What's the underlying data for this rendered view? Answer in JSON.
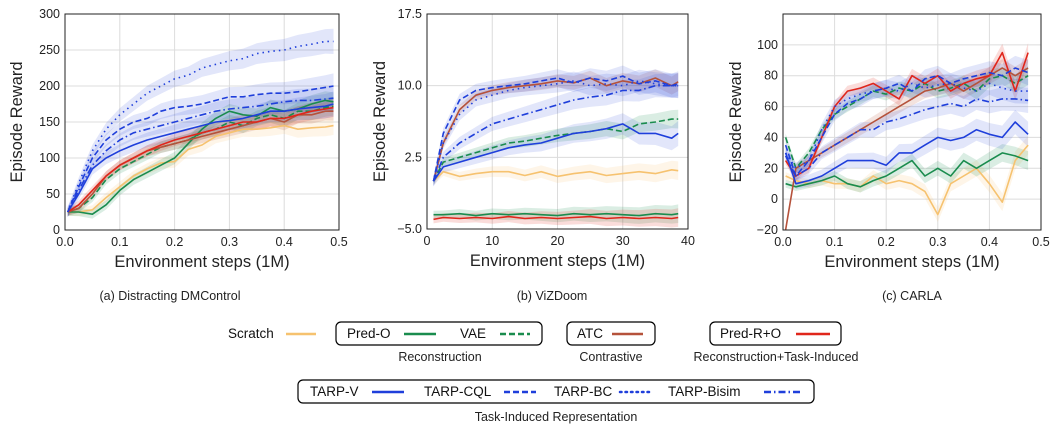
{
  "chart_data": [
    {
      "type": "line",
      "caption": "(a) Distracting DMControl",
      "xlabel": "Environment steps (1M)",
      "ylabel": "Episode Reward",
      "xlim": [
        0,
        0.5
      ],
      "ylim": [
        0,
        300
      ],
      "xticks": [
        "0.0",
        "0.1",
        "0.2",
        "0.3",
        "0.4",
        "0.5"
      ],
      "yticks": [
        "0",
        "50",
        "100",
        "150",
        "200",
        "250",
        "300"
      ],
      "grid": true,
      "x": [
        0.005,
        0.025,
        0.05,
        0.075,
        0.1,
        0.125,
        0.15,
        0.175,
        0.2,
        0.225,
        0.25,
        0.275,
        0.3,
        0.325,
        0.35,
        0.375,
        0.4,
        0.425,
        0.45,
        0.475,
        0.49
      ],
      "series": [
        {
          "key": "scratch",
          "values": [
            25,
            25,
            28,
            45,
            60,
            75,
            85,
            93,
            95,
            112,
            118,
            130,
            135,
            140,
            140,
            142,
            145,
            140,
            142,
            143,
            145
          ]
        },
        {
          "key": "pred_o",
          "values": [
            25,
            25,
            22,
            35,
            55,
            70,
            80,
            90,
            100,
            120,
            140,
            155,
            165,
            160,
            158,
            170,
            165,
            168,
            175,
            180,
            178
          ]
        },
        {
          "key": "vae",
          "values": [
            25,
            30,
            45,
            70,
            85,
            95,
            105,
            115,
            120,
            125,
            135,
            140,
            150,
            145,
            155,
            160,
            155,
            165,
            165,
            170,
            172
          ]
        },
        {
          "key": "atc",
          "values": [
            25,
            30,
            50,
            75,
            90,
            100,
            110,
            115,
            120,
            125,
            130,
            135,
            140,
            145,
            150,
            155,
            150,
            160,
            160,
            165,
            165
          ]
        },
        {
          "key": "pred_ro",
          "values": [
            25,
            35,
            55,
            75,
            90,
            100,
            110,
            118,
            125,
            130,
            135,
            140,
            145,
            150,
            150,
            155,
            155,
            160,
            165,
            168,
            170
          ]
        },
        {
          "key": "tarp_v",
          "values": [
            25,
            50,
            85,
            100,
            110,
            118,
            125,
            130,
            135,
            140,
            145,
            150,
            152,
            155,
            160,
            165,
            165,
            168,
            170,
            172,
            175
          ]
        },
        {
          "key": "tarp_cql",
          "values": [
            25,
            60,
            100,
            125,
            140,
            150,
            155,
            165,
            170,
            172,
            175,
            180,
            185,
            185,
            188,
            190,
            190,
            192,
            195,
            198,
            200
          ]
        },
        {
          "key": "tarp_bc",
          "values": [
            25,
            65,
            110,
            140,
            160,
            175,
            190,
            200,
            210,
            215,
            225,
            230,
            235,
            238,
            245,
            248,
            250,
            255,
            258,
            262,
            262
          ]
        },
        {
          "key": "tarp_bisim",
          "values": [
            25,
            55,
            90,
            110,
            125,
            135,
            140,
            145,
            150,
            155,
            160,
            165,
            168,
            170,
            172,
            175,
            178,
            180,
            180,
            182,
            183
          ]
        }
      ]
    },
    {
      "type": "line",
      "caption": "(b) ViZDoom",
      "xlabel": "Environment steps (1M)",
      "ylabel": "Episode Reward",
      "xlim": [
        0,
        40
      ],
      "ylim": [
        -5,
        17.5
      ],
      "xticks": [
        "0",
        "10",
        "20",
        "30",
        "40"
      ],
      "yticks": [
        "−5.0",
        "2.5",
        "10.0",
        "17.5"
      ],
      "grid": true,
      "x": [
        1,
        2.5,
        5,
        7.5,
        10,
        12.5,
        15,
        17.5,
        20,
        22.5,
        25,
        27.5,
        30,
        32.5,
        35,
        37.5,
        38.5
      ],
      "series": [
        {
          "key": "scratch",
          "values": [
            0,
            1.0,
            0.5,
            0.8,
            1.0,
            1.0,
            0.6,
            1.0,
            0.5,
            0.8,
            1.0,
            0.6,
            0.8,
            1.0,
            0.8,
            1.2,
            1.1
          ]
        },
        {
          "key": "pred_o",
          "values": [
            -3.5,
            -3.5,
            -3.4,
            -3.6,
            -3.4,
            -3.5,
            -3.4,
            -3.5,
            -3.6,
            -3.4,
            -3.5,
            -3.4,
            -3.5,
            -3.6,
            -3.4,
            -3.5,
            -3.4
          ]
        },
        {
          "key": "vae",
          "values": [
            0,
            2.0,
            2.5,
            3.0,
            3.5,
            4.0,
            4.2,
            4.5,
            4.8,
            5.0,
            5.2,
            5.5,
            5.2,
            6.0,
            6.2,
            6.5,
            6.5
          ]
        },
        {
          "key": "atc",
          "values": [
            0,
            4.0,
            7.5,
            9.0,
            9.5,
            9.8,
            10.0,
            10.2,
            10.5,
            10.3,
            10.8,
            10.0,
            10.5,
            10.2,
            10.8,
            10.0,
            10.4
          ]
        },
        {
          "key": "pred_ro",
          "values": [
            -4.0,
            -3.8,
            -3.9,
            -3.8,
            -3.9,
            -3.7,
            -3.9,
            -3.8,
            -3.9,
            -3.8,
            -3.7,
            -3.9,
            -3.8,
            -3.9,
            -3.8,
            -3.9,
            -3.8
          ]
        },
        {
          "key": "tarp_v",
          "values": [
            0,
            1.5,
            2.0,
            2.5,
            3.0,
            3.5,
            3.8,
            4.0,
            4.5,
            5.0,
            5.2,
            5.5,
            6.0,
            5.0,
            5.0,
            4.5,
            5.0
          ]
        },
        {
          "key": "tarp_cql",
          "values": [
            0,
            5.0,
            8.5,
            9.5,
            9.8,
            10.0,
            10.2,
            10.5,
            10.8,
            10.3,
            10.8,
            10.5,
            11.0,
            10.2,
            10.5,
            10.0,
            10.2
          ]
        },
        {
          "key": "tarp_bc",
          "values": [
            0,
            4.0,
            7.0,
            8.5,
            9.0,
            9.5,
            9.8,
            10.0,
            10.2,
            10.5,
            10.0,
            10.2,
            10.0,
            10.5,
            10.2,
            10.0,
            10.0
          ]
        },
        {
          "key": "tarp_bisim",
          "values": [
            0,
            2.5,
            4.0,
            5.0,
            6.0,
            6.5,
            7.0,
            7.5,
            8.0,
            8.5,
            8.8,
            9.0,
            9.5,
            9.5,
            10.0,
            10.0,
            10.0
          ]
        }
      ]
    },
    {
      "type": "line",
      "caption": "(c) CARLA",
      "xlabel": "Environment steps (1M)",
      "ylabel": "Episode Reward",
      "xlim": [
        0,
        0.5
      ],
      "ylim": [
        -20,
        120
      ],
      "xticks": [
        "0.0",
        "0.1",
        "0.2",
        "0.3",
        "0.4",
        "0.5"
      ],
      "yticks": [
        "−20",
        "0",
        "20",
        "40",
        "60",
        "80",
        "100"
      ],
      "grid": true,
      "x": [
        0.005,
        0.025,
        0.05,
        0.075,
        0.1,
        0.125,
        0.15,
        0.175,
        0.2,
        0.225,
        0.25,
        0.275,
        0.3,
        0.325,
        0.35,
        0.375,
        0.4,
        0.425,
        0.45,
        0.475
      ],
      "series": [
        {
          "key": "scratch",
          "values": [
            15,
            12,
            10,
            12,
            10,
            10,
            8,
            15,
            10,
            12,
            10,
            5,
            -10,
            10,
            15,
            20,
            10,
            -2,
            25,
            35
          ]
        },
        {
          "key": "pred_o",
          "values": [
            10,
            8,
            10,
            12,
            15,
            10,
            8,
            12,
            15,
            20,
            25,
            15,
            20,
            15,
            25,
            20,
            25,
            30,
            28,
            25
          ]
        },
        {
          "key": "vae",
          "values": [
            40,
            20,
            30,
            45,
            55,
            60,
            65,
            70,
            68,
            72,
            70,
            75,
            70,
            72,
            75,
            70,
            78,
            80,
            75,
            80
          ]
        },
        {
          "key": "atc",
          "values": [
            -20,
            20,
            25,
            30,
            35,
            40,
            45,
            50,
            55,
            60,
            65,
            70,
            72,
            75,
            70,
            75,
            80,
            85,
            80,
            85
          ]
        },
        {
          "key": "pred_ro",
          "values": [
            25,
            15,
            20,
            40,
            60,
            70,
            72,
            75,
            70,
            65,
            80,
            75,
            80,
            70,
            75,
            78,
            80,
            95,
            70,
            95
          ]
        },
        {
          "key": "tarp_v",
          "values": [
            30,
            10,
            12,
            15,
            20,
            25,
            25,
            25,
            22,
            30,
            30,
            35,
            40,
            38,
            40,
            45,
            42,
            40,
            50,
            42
          ]
        },
        {
          "key": "tarp_cql",
          "values": [
            35,
            15,
            25,
            40,
            55,
            62,
            65,
            70,
            72,
            75,
            70,
            78,
            80,
            75,
            78,
            80,
            82,
            80,
            85,
            82
          ]
        },
        {
          "key": "tarp_bc",
          "values": [
            30,
            20,
            25,
            45,
            60,
            65,
            68,
            70,
            72,
            70,
            75,
            72,
            74,
            75,
            72,
            70,
            75,
            72,
            70,
            70
          ]
        },
        {
          "key": "tarp_bisim",
          "values": [
            28,
            15,
            20,
            30,
            35,
            40,
            45,
            45,
            50,
            52,
            55,
            58,
            60,
            62,
            60,
            65,
            63,
            65,
            65,
            64
          ]
        }
      ]
    }
  ],
  "legend": {
    "styles": {
      "scratch": {
        "label": "Scratch",
        "color": "#f6c26f",
        "dash": "solid"
      },
      "pred_o": {
        "label": "Pred-O",
        "color": "#1a8c4e",
        "dash": "solid"
      },
      "vae": {
        "label": "VAE",
        "color": "#1a8c4e",
        "dash": "dashed"
      },
      "atc": {
        "label": "ATC",
        "color": "#b5523b",
        "dash": "solid"
      },
      "pred_ro": {
        "label": "Pred-R+O",
        "color": "#e0261b",
        "dash": "solid"
      },
      "tarp_v": {
        "label": "TARP-V",
        "color": "#1f3fdb",
        "dash": "solid"
      },
      "tarp_cql": {
        "label": "TARP-CQL",
        "color": "#1f3fdb",
        "dash": "dashed"
      },
      "tarp_bc": {
        "label": "TARP-BC",
        "color": "#1f3fdb",
        "dash": "dotted"
      },
      "tarp_bisim": {
        "label": "TARP-Bisim",
        "color": "#1f3fdb",
        "dash": "dashdot"
      }
    },
    "groups": {
      "reconstruction": "Reconstruction",
      "contrastive": "Contrastive",
      "recon_task": "Reconstruction+Task-Induced",
      "task_induced": "Task-Induced Representation"
    }
  }
}
